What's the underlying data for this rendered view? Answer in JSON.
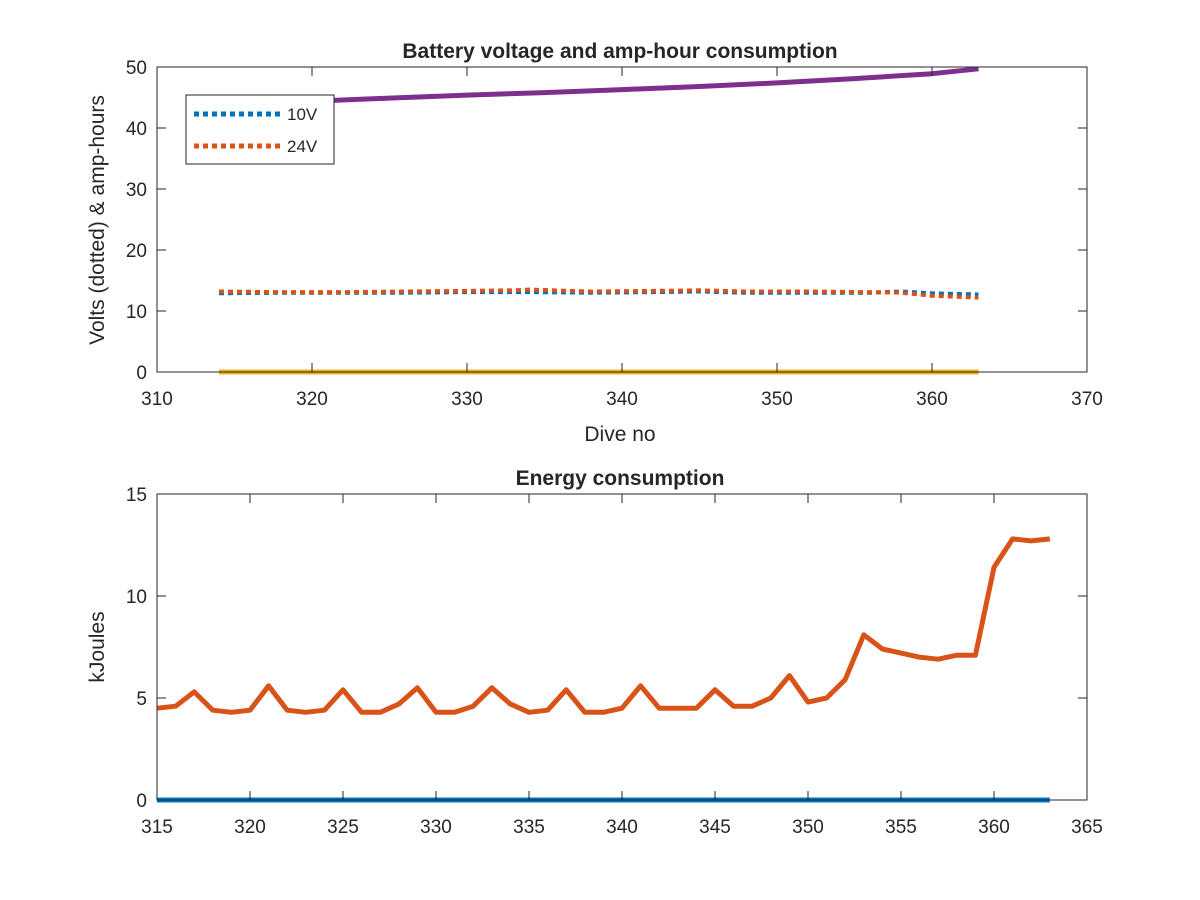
{
  "chart_data": [
    {
      "type": "line",
      "title": "Battery voltage and amp-hour consumption",
      "xlabel": "Dive no",
      "ylabel": "Volts (dotted) & amp-hours",
      "xlim": [
        310,
        370
      ],
      "ylim": [
        0,
        50
      ],
      "xticks": [
        "310",
        "320",
        "330",
        "340",
        "350",
        "360",
        "370"
      ],
      "yticks": [
        "0",
        "10",
        "20",
        "30",
        "40",
        "50"
      ],
      "legend_position": "top-left",
      "series": [
        {
          "name": "10V",
          "style": "dotted",
          "color": "#0072BD",
          "x": [
            314,
            318,
            322,
            326,
            330,
            334,
            338,
            342,
            345,
            348,
            352,
            356,
            358,
            360,
            363
          ],
          "y": [
            12.9,
            13.0,
            13.0,
            13.0,
            13.1,
            13.1,
            13.0,
            13.1,
            13.2,
            13.0,
            13.0,
            13.0,
            13.2,
            12.9,
            12.7
          ]
        },
        {
          "name": "24V",
          "style": "dotted",
          "color": "#D95319",
          "x": [
            314,
            318,
            322,
            326,
            330,
            333,
            334,
            338,
            342,
            345,
            348,
            352,
            356,
            358,
            360,
            363
          ],
          "y": [
            13.2,
            13.1,
            13.1,
            13.2,
            13.3,
            13.4,
            13.5,
            13.2,
            13.3,
            13.4,
            13.2,
            13.2,
            13.1,
            13.0,
            12.5,
            12.2
          ]
        },
        {
          "style": "solid",
          "color": "#7E2F8E",
          "x": [
            314,
            320,
            325,
            330,
            335,
            340,
            345,
            350,
            355,
            360,
            363
          ],
          "y": [
            44.0,
            44.4,
            44.9,
            45.4,
            45.8,
            46.3,
            46.8,
            47.4,
            48.1,
            48.9,
            49.7
          ]
        },
        {
          "style": "solid",
          "color": "#EDB120",
          "x": [
            314,
            363
          ],
          "y": [
            0,
            0
          ]
        }
      ]
    },
    {
      "type": "line",
      "title": "Energy consumption",
      "xlabel": "",
      "ylabel": "kJoules",
      "xlim": [
        315,
        365
      ],
      "ylim": [
        0,
        15
      ],
      "xticks": [
        "315",
        "320",
        "325",
        "330",
        "335",
        "340",
        "345",
        "350",
        "355",
        "360",
        "365"
      ],
      "yticks": [
        "0",
        "5",
        "10",
        "15"
      ],
      "series": [
        {
          "style": "solid",
          "color": "#D95319",
          "x": [
            315,
            316,
            317,
            318,
            319,
            320,
            321,
            322,
            323,
            324,
            325,
            326,
            327,
            328,
            329,
            330,
            331,
            332,
            333,
            334,
            335,
            336,
            337,
            338,
            339,
            340,
            341,
            342,
            343,
            344,
            345,
            346,
            347,
            348,
            349,
            350,
            351,
            352,
            353,
            354,
            355,
            356,
            357,
            358,
            359,
            360,
            361,
            362,
            363
          ],
          "y": [
            4.5,
            4.6,
            5.3,
            4.4,
            4.3,
            4.4,
            5.6,
            4.4,
            4.3,
            4.4,
            5.4,
            4.3,
            4.3,
            4.7,
            5.5,
            4.3,
            4.3,
            4.6,
            5.5,
            4.7,
            4.3,
            4.4,
            5.4,
            4.3,
            4.3,
            4.5,
            5.6,
            4.5,
            4.5,
            4.5,
            5.4,
            4.6,
            4.6,
            5.0,
            6.1,
            4.8,
            5.0,
            5.9,
            8.1,
            7.4,
            7.2,
            7.0,
            6.9,
            7.1,
            7.1,
            11.4,
            12.8,
            12.7,
            12.8
          ]
        },
        {
          "style": "solid",
          "color": "#0072BD",
          "x": [
            315,
            363
          ],
          "y": [
            0,
            0
          ]
        }
      ]
    }
  ]
}
